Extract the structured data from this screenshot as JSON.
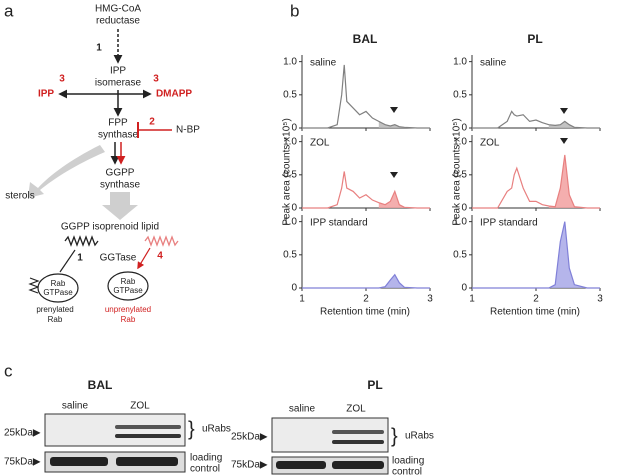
{
  "panel_labels": [
    "a",
    "b",
    "c"
  ],
  "diagram": {
    "hmg": [
      "HMG-CoA",
      "reductase"
    ],
    "step1": "1",
    "ipp_isomerase": [
      "IPP",
      "isomerase"
    ],
    "three_left": "3",
    "three_right": "3",
    "ipp": "IPP",
    "dmapp": "DMAPP",
    "fpp": [
      "FPP",
      "synthase"
    ],
    "two": "2",
    "nbp": "N-BP",
    "sterols": "sterols",
    "ggpp": [
      "GGPP",
      "synthase"
    ],
    "lipid": "GGPP isoprenoid lipid",
    "one_b": "1",
    "ggtase": "GGTase",
    "four": "4",
    "rab_left": [
      "Rab",
      "GTPase"
    ],
    "rab_right": [
      "Rab",
      "GTPase"
    ],
    "prenylated": [
      "prenylated",
      "Rab"
    ],
    "unprenylated": [
      "unprenylated",
      "Rab"
    ]
  },
  "chromatograms": {
    "columns": [
      "BAL",
      "PL"
    ],
    "ylabel": "Peak area (counts x10⁵)",
    "xlabel": "Retention time (min)"
  },
  "chart_data": [
    {
      "type": "line",
      "title": "saline",
      "color": "#808080",
      "fill": "#b8b8b8",
      "x": [
        1,
        1.4,
        1.55,
        1.62,
        1.66,
        1.7,
        1.8,
        1.9,
        2.0,
        2.1,
        2.2,
        2.3,
        2.38,
        2.45,
        2.52,
        2.6,
        2.8,
        3
      ],
      "values": [
        0,
        0,
        0.05,
        0.5,
        0.95,
        0.4,
        0.3,
        0.2,
        0.25,
        0.15,
        0.1,
        0.05,
        0.03,
        0.05,
        0.02,
        0.01,
        0,
        0
      ],
      "xlim": [
        1,
        3
      ],
      "xticks": [
        1,
        2,
        3
      ],
      "ylim": [
        0,
        1.1
      ],
      "yticks": [
        0,
        0.5,
        {
          "value": 1,
          "label": "1.0"
        }
      ]
    },
    {
      "type": "line",
      "title": "ZOL",
      "color": "#e88080",
      "fill": "#f2a0a0",
      "x": [
        1,
        1.4,
        1.55,
        1.62,
        1.66,
        1.7,
        1.8,
        1.9,
        2.0,
        2.1,
        2.2,
        2.3,
        2.38,
        2.45,
        2.52,
        2.6,
        2.8,
        3
      ],
      "values": [
        0,
        0,
        0.05,
        0.3,
        0.55,
        0.3,
        0.25,
        0.15,
        0.2,
        0.12,
        0.08,
        0.05,
        0.1,
        0.25,
        0.05,
        0.01,
        0,
        0
      ],
      "xlim": [
        1,
        3
      ],
      "xticks": [
        1,
        2,
        3
      ],
      "ylim": [
        0,
        1.1
      ],
      "yticks": [
        0,
        0.5,
        {
          "value": 1,
          "label": "1.0"
        }
      ]
    },
    {
      "type": "line",
      "title": "IPP standard",
      "color": "#8080d8",
      "fill": "#a8a8e8",
      "x": [
        1,
        1.4,
        1.55,
        1.62,
        1.66,
        1.7,
        1.8,
        1.9,
        2.0,
        2.1,
        2.2,
        2.3,
        2.38,
        2.45,
        2.52,
        2.6,
        2.8,
        3
      ],
      "values": [
        0,
        0,
        0,
        0,
        0,
        0,
        0,
        0,
        0,
        0,
        0,
        0.02,
        0.12,
        0.2,
        0.08,
        0.01,
        0,
        0
      ],
      "xlim": [
        1,
        3
      ],
      "xticks": [
        1,
        2,
        3
      ],
      "ylim": [
        0,
        1.1
      ],
      "yticks": [
        0,
        0.5,
        {
          "value": 1,
          "label": "1.0"
        }
      ]
    },
    {
      "type": "line",
      "title": "saline",
      "color": "#808080",
      "fill": "#b8b8b8",
      "x": [
        1,
        1.4,
        1.55,
        1.62,
        1.66,
        1.7,
        1.8,
        1.9,
        2.0,
        2.1,
        2.2,
        2.3,
        2.38,
        2.45,
        2.52,
        2.6,
        2.8,
        3
      ],
      "values": [
        0,
        0,
        0.1,
        0.25,
        0.2,
        0.18,
        0.2,
        0.1,
        0.12,
        0.08,
        0.05,
        0.04,
        0.05,
        0.1,
        0.05,
        0.01,
        0,
        0
      ],
      "xlim": [
        1,
        3
      ],
      "xticks": [
        1,
        2,
        3
      ],
      "ylim": [
        0,
        1.1
      ],
      "yticks": [
        0,
        0.5,
        {
          "value": 1,
          "label": "1.0"
        }
      ]
    },
    {
      "type": "line",
      "title": "ZOL",
      "color": "#e88080",
      "fill": "#f2a0a0",
      "x": [
        1,
        1.4,
        1.55,
        1.62,
        1.66,
        1.7,
        1.8,
        1.9,
        2.0,
        2.1,
        2.2,
        2.3,
        2.38,
        2.45,
        2.52,
        2.6,
        2.8,
        3
      ],
      "values": [
        0,
        0,
        0.25,
        0.3,
        0.5,
        0.6,
        0.3,
        0.1,
        0.1,
        0.05,
        0.03,
        0.02,
        0.3,
        0.8,
        0.2,
        0.02,
        0,
        0
      ],
      "xlim": [
        1,
        3
      ],
      "xticks": [
        1,
        2,
        3
      ],
      "ylim": [
        0,
        1.1
      ],
      "yticks": [
        0,
        0.5,
        {
          "value": 1,
          "label": "1.0"
        }
      ]
    },
    {
      "type": "line",
      "title": "IPP standard",
      "color": "#8080d8",
      "fill": "#a8a8e8",
      "x": [
        1,
        1.4,
        1.55,
        1.62,
        1.66,
        1.7,
        1.8,
        1.9,
        2.0,
        2.1,
        2.2,
        2.3,
        2.38,
        2.45,
        2.52,
        2.6,
        2.8,
        3
      ],
      "values": [
        0,
        0,
        0,
        0,
        0,
        0,
        0,
        0,
        0,
        0,
        0,
        0.05,
        0.7,
        1.0,
        0.3,
        0.05,
        0,
        0
      ],
      "xlim": [
        1,
        3
      ],
      "xticks": [
        1,
        2,
        3
      ],
      "ylim": [
        0,
        1.1
      ],
      "yticks": [
        0,
        0.5,
        {
          "value": 1,
          "label": "1.0"
        }
      ]
    }
  ],
  "blots": {
    "bal": {
      "title": "BAL",
      "lanes": [
        "saline",
        "ZOL"
      ],
      "marker_top": "25kDa▶",
      "marker_bottom": "75kDa▶",
      "bracket": "}",
      "urabs": "uRabs",
      "loading": [
        "loading",
        "control"
      ]
    },
    "pl": {
      "title": "PL",
      "lanes": [
        "saline",
        "ZOL"
      ],
      "marker_top": "25kDa▶",
      "marker_bottom": "75kDa▶",
      "bracket": "}",
      "urabs": "uRabs",
      "loading": [
        "loading",
        "control"
      ]
    }
  }
}
